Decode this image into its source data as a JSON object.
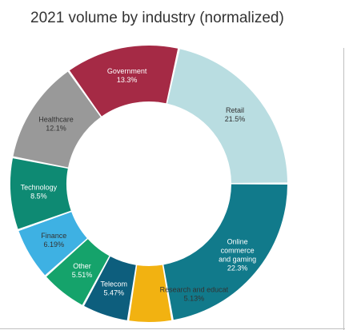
{
  "title": "2021  volume by industry (normalized)",
  "chart_data": {
    "type": "pie",
    "style": "donut",
    "title": "2021  volume by industry (normalized)",
    "slices": [
      {
        "label": "Retail",
        "lines": [
          "Retail"
        ],
        "value_text": "21.5%",
        "value": 21.5,
        "color": "#b9dde1",
        "text_color": "#333333"
      },
      {
        "label": "Online commerce and gaming",
        "lines": [
          "Online",
          "commerce",
          "and gaming"
        ],
        "value_text": "22.3%",
        "value": 22.3,
        "color": "#117a8b",
        "text_color": "#ffffff"
      },
      {
        "label": "Research and educat",
        "lines": [
          "Research and educat"
        ],
        "value_text": "5.13%",
        "value": 5.13,
        "color": "#f2b211",
        "text_color": "#333333"
      },
      {
        "label": "Telecom",
        "lines": [
          "Telecom"
        ],
        "value_text": "5.47%",
        "value": 5.47,
        "color": "#0d5e7d",
        "text_color": "#ffffff"
      },
      {
        "label": "Other",
        "lines": [
          "Other"
        ],
        "value_text": "5.51%",
        "value": 5.51,
        "color": "#15a36b",
        "text_color": "#ffffff"
      },
      {
        "label": "Finance",
        "lines": [
          "Finance"
        ],
        "value_text": "6.19%",
        "value": 6.19,
        "color": "#3eb1e3",
        "text_color": "#333333"
      },
      {
        "label": "Technology",
        "lines": [
          "Technology"
        ],
        "value_text": "8.5%",
        "value": 8.5,
        "color": "#0e8a73",
        "text_color": "#ffffff"
      },
      {
        "label": "Healthcare",
        "lines": [
          "Healthcare"
        ],
        "value_text": "12.1%",
        "value": 12.1,
        "color": "#999999",
        "text_color": "#333333"
      },
      {
        "label": "Government",
        "lines": [
          "Government"
        ],
        "value_text": "13.3%",
        "value": 13.3,
        "color": "#a52a45",
        "text_color": "#ffffff"
      }
    ],
    "legend": "none"
  }
}
